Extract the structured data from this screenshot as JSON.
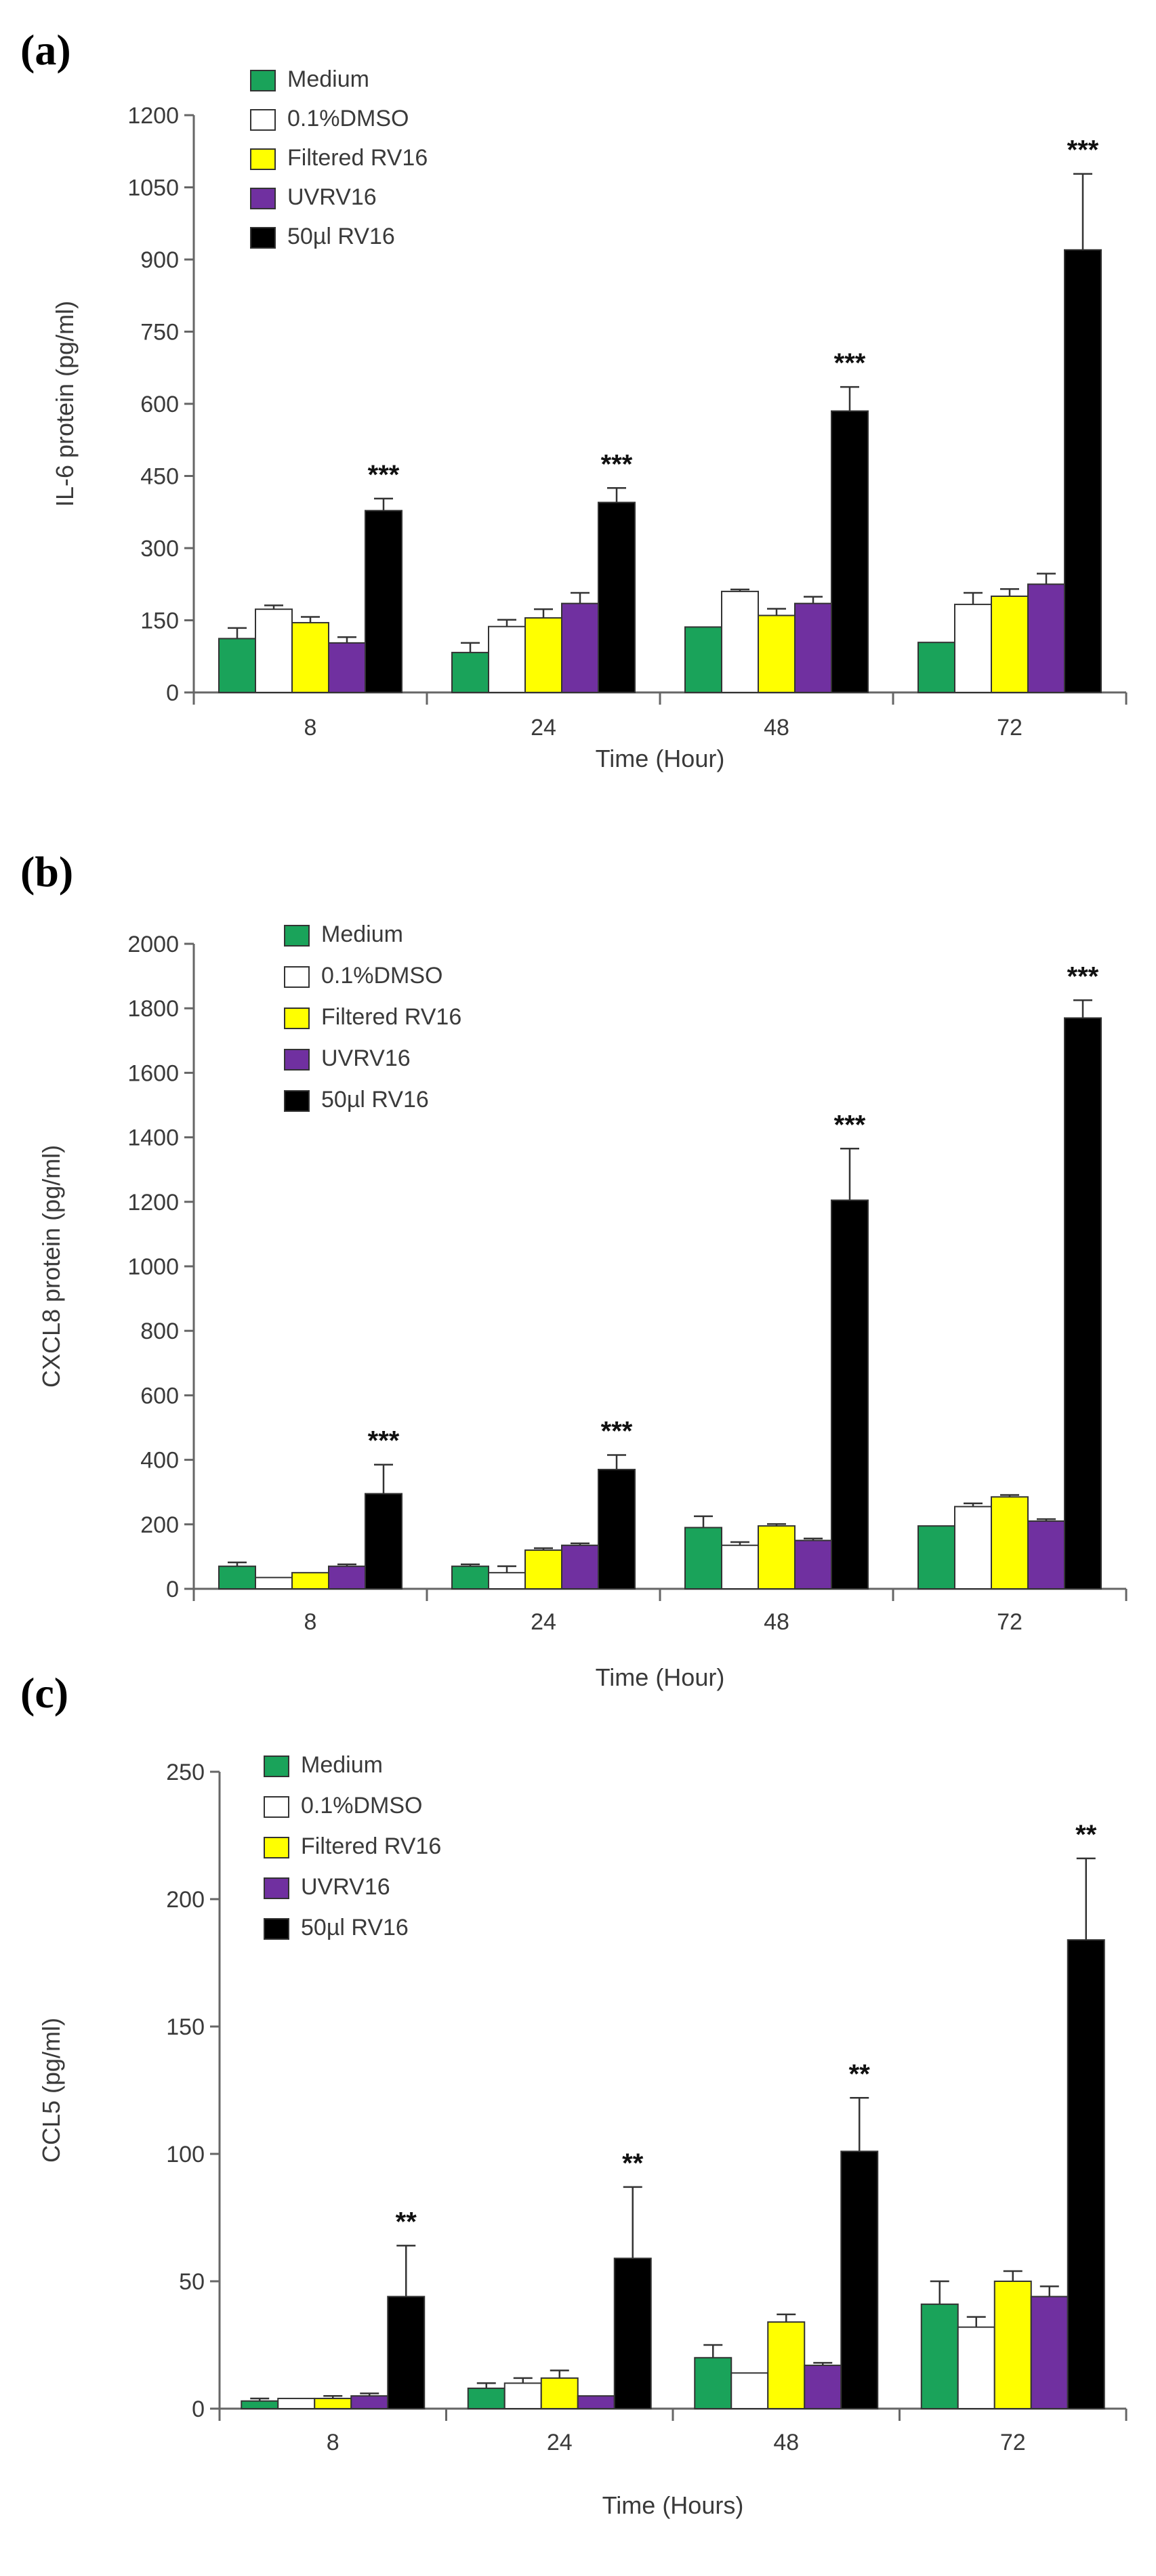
{
  "figure": {
    "panel_labels": [
      "(a)",
      "(b)",
      "(c)"
    ],
    "legend": [
      {
        "name": "Medium",
        "color": "#1aa35a"
      },
      {
        "name": "0.1%DMSO",
        "color": "#ffffff"
      },
      {
        "name": "Filtered RV16",
        "color": "#ffff00"
      },
      {
        "name": "UVRV16",
        "color": "#7030a0"
      },
      {
        "name": "50µl RV16",
        "color": "#000000"
      }
    ]
  },
  "chart_data": [
    {
      "type": "bar",
      "panel": "(a)",
      "title": "",
      "xlabel": "Time (Hour)",
      "ylabel": "IL-6 protein (pg/ml)",
      "ylim": [
        0,
        1200
      ],
      "yticks": [
        0,
        150,
        300,
        450,
        600,
        750,
        900,
        1050,
        1200
      ],
      "categories": [
        "8",
        "24",
        "48",
        "72"
      ],
      "legend_position": "top-left",
      "series": [
        {
          "name": "Medium",
          "color": "#1aa35a",
          "values": [
            112,
            83,
            136,
            104
          ],
          "errors": [
            22,
            20,
            0,
            0
          ]
        },
        {
          "name": "0.1%DMSO",
          "color": "#ffffff",
          "values": [
            173,
            137,
            210,
            183
          ],
          "errors": [
            8,
            14,
            4,
            24
          ]
        },
        {
          "name": "Filtered RV16",
          "color": "#ffff00",
          "values": [
            145,
            155,
            160,
            200
          ],
          "errors": [
            12,
            18,
            14,
            15
          ]
        },
        {
          "name": "UVRV16",
          "color": "#7030a0",
          "values": [
            103,
            185,
            185,
            225
          ],
          "errors": [
            12,
            22,
            14,
            22
          ]
        },
        {
          "name": "50µl RV16",
          "color": "#000000",
          "values": [
            378,
            395,
            585,
            920
          ],
          "errors": [
            25,
            30,
            50,
            158
          ]
        }
      ],
      "significance": [
        "***",
        "***",
        "***",
        "***"
      ]
    },
    {
      "type": "bar",
      "panel": "(b)",
      "title": "",
      "xlabel": "Time (Hour)",
      "ylabel": "CXCL8 protein (pg/ml)",
      "ylim": [
        0,
        2000
      ],
      "yticks": [
        0,
        200,
        400,
        600,
        800,
        1000,
        1200,
        1400,
        1600,
        1800,
        2000
      ],
      "categories": [
        "8",
        "24",
        "48",
        "72"
      ],
      "legend_position": "top-left",
      "series": [
        {
          "name": "Medium",
          "color": "#1aa35a",
          "values": [
            70,
            70,
            190,
            195
          ],
          "errors": [
            12,
            6,
            35,
            0
          ]
        },
        {
          "name": "0.1%DMSO",
          "color": "#ffffff",
          "values": [
            35,
            50,
            135,
            255
          ],
          "errors": [
            0,
            20,
            10,
            10
          ]
        },
        {
          "name": "Filtered RV16",
          "color": "#ffff00",
          "values": [
            50,
            120,
            195,
            285
          ],
          "errors": [
            0,
            6,
            6,
            6
          ]
        },
        {
          "name": "UVRV16",
          "color": "#7030a0",
          "values": [
            70,
            135,
            150,
            210
          ],
          "errors": [
            6,
            6,
            6,
            6
          ]
        },
        {
          "name": "50µl RV16",
          "color": "#000000",
          "values": [
            295,
            370,
            1205,
            1770
          ],
          "errors": [
            90,
            45,
            160,
            55
          ]
        }
      ],
      "significance": [
        "***",
        "***",
        "***",
        "***"
      ]
    },
    {
      "type": "bar",
      "panel": "(c)",
      "title": "",
      "xlabel": "Time (Hours)",
      "ylabel": "CCL5 (pg/ml)",
      "ylim": [
        0,
        250
      ],
      "yticks": [
        0,
        50,
        100,
        150,
        200,
        250
      ],
      "categories": [
        "8",
        "24",
        "48",
        "72"
      ],
      "legend_position": "top-left",
      "series": [
        {
          "name": "Medium",
          "color": "#1aa35a",
          "values": [
            3,
            8,
            20,
            41
          ],
          "errors": [
            1,
            2,
            5,
            9
          ]
        },
        {
          "name": "0.1%DMSO",
          "color": "#ffffff",
          "values": [
            4,
            10,
            14,
            32
          ],
          "errors": [
            0,
            2,
            0,
            4
          ]
        },
        {
          "name": "Filtered RV16",
          "color": "#ffff00",
          "values": [
            4,
            12,
            34,
            50
          ],
          "errors": [
            1,
            3,
            3,
            4
          ]
        },
        {
          "name": "UVRV16",
          "color": "#7030a0",
          "values": [
            5,
            5,
            17,
            44
          ],
          "errors": [
            1,
            0,
            1,
            4
          ]
        },
        {
          "name": "50µl RV16",
          "color": "#000000",
          "values": [
            44,
            59,
            101,
            184
          ],
          "errors": [
            20,
            28,
            21,
            32
          ]
        }
      ],
      "significance": [
        "**",
        "**",
        "**",
        "**"
      ]
    }
  ]
}
